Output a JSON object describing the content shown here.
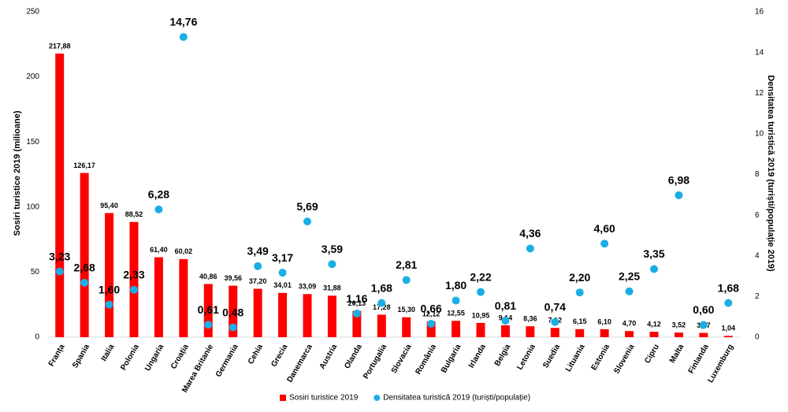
{
  "chart_data": {
    "type": "combo",
    "categories": [
      "Franța",
      "Spania",
      "Italia",
      "Polonia",
      "Ungaria",
      "Croația",
      "Marea Britanie",
      "Germania",
      "Cehia",
      "Grecia",
      "Danemarca",
      "Austria",
      "Olanda",
      "Portugalia",
      "Slovacia",
      "România",
      "Bulgaria",
      "Irlanda",
      "Belgia",
      "Letonia",
      "Suedia",
      "Lituania",
      "Estonia",
      "Slovenia",
      "Cipru",
      "Malta",
      "Finlanda",
      "Luxemburg"
    ],
    "y_label": "Sosiri turistice 2019 (milioane)",
    "y2_label": "Densitatea turistică 2019 (turiști/populație 2019)",
    "ylim": [
      0,
      250
    ],
    "yticks": [
      0,
      50,
      100,
      150,
      200,
      250
    ],
    "y2lim": [
      0,
      16
    ],
    "y2ticks": [
      0,
      2,
      4,
      6,
      8,
      10,
      12,
      14,
      16
    ],
    "legend": "bottom",
    "series": [
      {
        "name": "Sosiri turistice 2019",
        "type": "bar",
        "color": "#ff0000",
        "values": [
          217.88,
          126.17,
          95.4,
          88.52,
          61.4,
          60.02,
          40.86,
          39.56,
          37.2,
          34.01,
          33.09,
          31.88,
          20.13,
          17.28,
          15.3,
          12.12,
          12.55,
          10.95,
          9.14,
          8.36,
          7.12,
          6.15,
          6.1,
          4.7,
          4.12,
          3.52,
          3.27,
          1.04
        ],
        "value_labels": [
          "217,88",
          "126,17",
          "95,40",
          "88,52",
          "61,40",
          "60,02",
          "40,86",
          "39,56",
          "37,20",
          "34,01",
          "33,09",
          "31,88",
          "20,13",
          "17,28",
          "15,30",
          "12,12",
          "12,55",
          "10,95",
          "9,14",
          "8,36",
          "7,12",
          "6,15",
          "6,10",
          "4,70",
          "4,12",
          "3,52",
          "3,27",
          "1,04"
        ]
      },
      {
        "name": "Densitatea turistică 2019 (turiști/populație)",
        "type": "scatter",
        "axis": "y2",
        "color": "#1aaee5",
        "values": [
          3.23,
          2.68,
          1.6,
          2.33,
          6.28,
          14.76,
          0.61,
          0.48,
          3.49,
          3.17,
          5.69,
          3.59,
          1.16,
          1.68,
          2.81,
          0.66,
          1.8,
          2.22,
          0.81,
          4.36,
          0.74,
          2.2,
          4.6,
          2.25,
          3.35,
          6.98,
          0.6,
          1.68
        ],
        "value_labels": [
          "3,23",
          "2,68",
          "1,60",
          "2,33",
          "6,28",
          "14,76",
          "0,61",
          "0,48",
          "3,49",
          "3,17",
          "5,69",
          "3,59",
          "1,16",
          "1,68",
          "2,81",
          "0,66",
          "1,80",
          "2,22",
          "0,81",
          "4,36",
          "0,74",
          "2,20",
          "4,60",
          "2,25",
          "3,35",
          "6,98",
          "0,60",
          "1,68"
        ]
      }
    ]
  }
}
